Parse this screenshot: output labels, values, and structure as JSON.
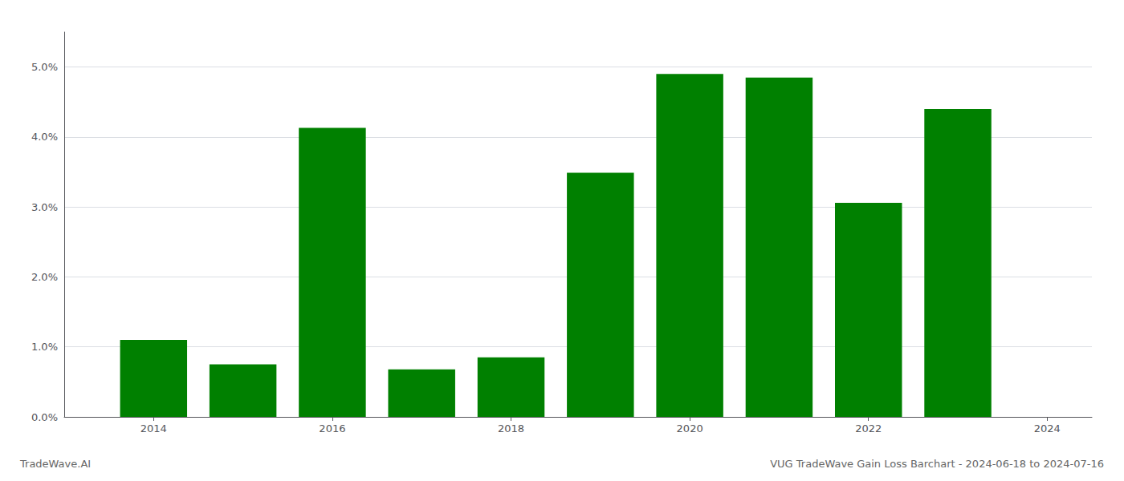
{
  "chart_data": {
    "type": "bar",
    "title": "VUG TradeWave Gain Loss Barchart - 2024-06-18 to 2024-07-16",
    "annotations": [
      "TradeWave.AI"
    ],
    "x": [
      2014,
      2015,
      2016,
      2017,
      2018,
      2019,
      2020,
      2021,
      2022,
      2023
    ],
    "values": [
      0.011,
      0.0075,
      0.0413,
      0.0068,
      0.0085,
      0.0349,
      0.049,
      0.0485,
      0.0306,
      0.044
    ],
    "color": "#008000",
    "xlim": [
      2013.0,
      2024.5
    ],
    "xticks": [
      2014,
      2016,
      2018,
      2020,
      2022,
      2024
    ],
    "ylim": [
      0,
      0.055
    ],
    "yticks": [
      {
        "value": 0.0,
        "label": "0.0%"
      },
      {
        "value": 0.01,
        "label": "1.0%"
      },
      {
        "value": 0.02,
        "label": "2.0%"
      },
      {
        "value": 0.03,
        "label": "3.0%"
      },
      {
        "value": 0.04,
        "label": "4.0%"
      },
      {
        "value": 0.05,
        "label": "5.0%"
      }
    ],
    "grid": true
  }
}
